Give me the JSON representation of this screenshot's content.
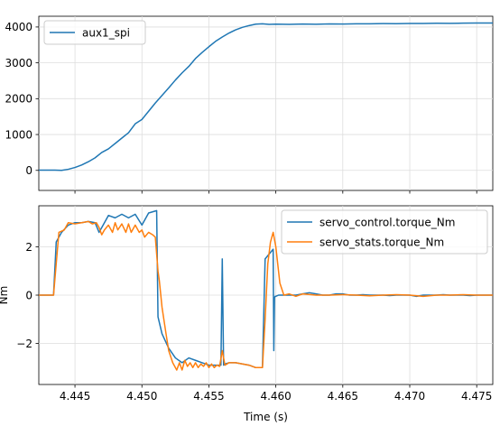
{
  "chart_data": [
    {
      "type": "line",
      "xlim": [
        4.4423,
        4.4762
      ],
      "ylim": [
        -560,
        4300
      ],
      "yticks": [
        0,
        1000,
        2000,
        3000,
        4000
      ],
      "yticklabels": [
        "0",
        "1000",
        "2000",
        "3000",
        "4000"
      ],
      "xticks": [
        4.445,
        4.45,
        4.455,
        4.46,
        4.465,
        4.47,
        4.475
      ],
      "show_xticklabels": false,
      "grid": true,
      "legend_position": "upper-left",
      "series": [
        {
          "name": "aux1_spi",
          "color": "#1f77b4",
          "x": [
            4.4423,
            4.4435,
            4.444,
            4.4445,
            4.445,
            4.4455,
            4.446,
            4.4465,
            4.447,
            4.4475,
            4.448,
            4.4485,
            4.449,
            4.4495,
            4.45,
            4.4505,
            4.451,
            4.4515,
            4.452,
            4.4525,
            4.453,
            4.4535,
            4.454,
            4.4545,
            4.455,
            4.4555,
            4.456,
            4.4565,
            4.457,
            4.4575,
            4.458,
            4.4585,
            4.459,
            4.4595,
            4.46,
            4.461,
            4.462,
            4.463,
            4.464,
            4.465,
            4.466,
            4.467,
            4.468,
            4.469,
            4.47,
            4.471,
            4.472,
            4.473,
            4.474,
            4.475,
            4.4762
          ],
          "values": [
            5,
            5,
            0,
            30,
            80,
            150,
            240,
            350,
            500,
            600,
            750,
            900,
            1050,
            1300,
            1420,
            1650,
            1880,
            2090,
            2300,
            2520,
            2720,
            2900,
            3120,
            3290,
            3450,
            3600,
            3720,
            3830,
            3920,
            3990,
            4040,
            4080,
            4090,
            4075,
            4080,
            4075,
            4082,
            4078,
            4085,
            4082,
            4088,
            4090,
            4095,
            4092,
            4098,
            4100,
            4105,
            4102,
            4108,
            4110,
            4112
          ]
        }
      ]
    },
    {
      "type": "line",
      "xlim": [
        4.4423,
        4.4762
      ],
      "ylim": [
        -3.7,
        3.7
      ],
      "yticks": [
        -2,
        0,
        2
      ],
      "yticklabels": [
        "−2",
        "0",
        "2"
      ],
      "xticks": [
        4.445,
        4.45,
        4.455,
        4.46,
        4.465,
        4.47,
        4.475
      ],
      "xticklabels": [
        "4.445",
        "4.450",
        "4.455",
        "4.460",
        "4.465",
        "4.470",
        "4.475"
      ],
      "xlabel": "Time (s)",
      "ylabel": "Nm",
      "grid": true,
      "legend_position": "upper-right",
      "series": [
        {
          "name": "servo_control.torque_Nm",
          "color": "#1f77b4",
          "x": [
            4.4423,
            4.4434,
            4.4436,
            4.4438,
            4.444,
            4.4445,
            4.445,
            4.4455,
            4.446,
            4.4465,
            4.4468,
            4.447,
            4.4475,
            4.448,
            4.4485,
            4.449,
            4.4495,
            4.45,
            4.4505,
            4.4511,
            4.4512,
            4.4515,
            4.452,
            4.4525,
            4.453,
            4.4535,
            4.454,
            4.4545,
            4.455,
            4.4555,
            4.4559,
            4.456,
            4.4561,
            4.4562,
            4.4565,
            4.457,
            4.4575,
            4.458,
            4.4585,
            4.459,
            4.4592,
            4.4595,
            4.4598,
            4.45985,
            4.4599,
            4.45995,
            4.46,
            4.4602,
            4.4605,
            4.461,
            4.4615,
            4.462,
            4.4625,
            4.463,
            4.4635,
            4.464,
            4.4645,
            4.465,
            4.4655,
            4.466,
            4.4665,
            4.467,
            4.4675,
            4.468,
            4.4685,
            4.469,
            4.4695,
            4.47,
            4.4705,
            4.471,
            4.4715,
            4.472,
            4.4725,
            4.473,
            4.4735,
            4.474,
            4.4745,
            4.475,
            4.4755,
            4.4762
          ],
          "values": [
            0,
            0,
            2.2,
            2.4,
            2.6,
            2.9,
            3.0,
            3.0,
            3.05,
            3.0,
            2.6,
            2.8,
            3.3,
            3.2,
            3.35,
            3.2,
            3.35,
            2.9,
            3.4,
            3.5,
            -0.9,
            -1.6,
            -2.2,
            -2.6,
            -2.8,
            -2.6,
            -2.7,
            -2.8,
            -2.9,
            -2.9,
            -2.9,
            1.5,
            -2.9,
            -2.85,
            -2.8,
            -2.8,
            -2.85,
            -2.9,
            -3.0,
            -3.0,
            1.5,
            1.7,
            1.9,
            -2.3,
            -0.1,
            -0.05,
            -0.05,
            0.0,
            0.0,
            0.0,
            0.0,
            0.05,
            0.1,
            0.05,
            0.0,
            0.0,
            0.05,
            0.05,
            0.0,
            0.0,
            0.02,
            0.0,
            0.0,
            0.0,
            -0.02,
            0.0,
            0.0,
            0.0,
            -0.05,
            0.0,
            0.0,
            0.0,
            0.02,
            0.0,
            0.0,
            0.0,
            -0.02,
            0.0,
            0.0,
            0.0
          ]
        },
        {
          "name": "servo_stats.torque_Nm",
          "color": "#ff7f0e",
          "x": [
            4.4423,
            4.4434,
            4.4438,
            4.4442,
            4.4445,
            4.445,
            4.4455,
            4.446,
            4.4463,
            4.4466,
            4.4468,
            4.447,
            4.4472,
            4.4475,
            4.4478,
            4.448,
            4.4482,
            4.4485,
            4.4488,
            4.449,
            4.4492,
            4.4495,
            4.4498,
            4.45,
            4.4502,
            4.4505,
            4.4508,
            4.451,
            4.4512,
            4.4513,
            4.4515,
            4.4518,
            4.452,
            4.4523,
            4.4526,
            4.4528,
            4.453,
            4.4532,
            4.4534,
            4.4536,
            4.4538,
            4.454,
            4.4542,
            4.4544,
            4.4546,
            4.4548,
            4.455,
            4.4552,
            4.4554,
            4.4556,
            4.4558,
            4.456,
            4.4562,
            4.4565,
            4.457,
            4.4575,
            4.458,
            4.4585,
            4.459,
            4.4592,
            4.4594,
            4.4596,
            4.4598,
            4.46,
            4.4603,
            4.4606,
            4.461,
            4.4615,
            4.462,
            4.463,
            4.464,
            4.465,
            4.466,
            4.467,
            4.468,
            4.469,
            4.47,
            4.471,
            4.472,
            4.473,
            4.474,
            4.475,
            4.4762
          ],
          "values": [
            0,
            0,
            2.6,
            2.7,
            3.0,
            2.95,
            3.0,
            3.05,
            2.95,
            3.0,
            2.8,
            2.5,
            2.7,
            2.9,
            2.6,
            3.0,
            2.7,
            2.95,
            2.6,
            2.95,
            2.6,
            2.9,
            2.6,
            2.7,
            2.4,
            2.6,
            2.5,
            2.4,
            1.0,
            0.6,
            -0.5,
            -1.6,
            -2.3,
            -2.8,
            -3.1,
            -2.8,
            -3.1,
            -2.7,
            -2.95,
            -2.8,
            -3.0,
            -2.8,
            -3.0,
            -2.85,
            -2.95,
            -2.8,
            -3.0,
            -2.85,
            -3.0,
            -2.9,
            -2.95,
            -2.3,
            -2.9,
            -2.8,
            -2.8,
            -2.85,
            -2.9,
            -3.0,
            -3.0,
            -1.0,
            1.3,
            2.2,
            2.6,
            2.0,
            0.5,
            0.0,
            0.05,
            -0.05,
            0.05,
            0.0,
            0.0,
            0.02,
            0.0,
            -0.03,
            0.0,
            0.02,
            0.0,
            -0.05,
            0.0,
            0.0,
            0.02,
            0.0,
            0.0
          ]
        }
      ]
    }
  ]
}
